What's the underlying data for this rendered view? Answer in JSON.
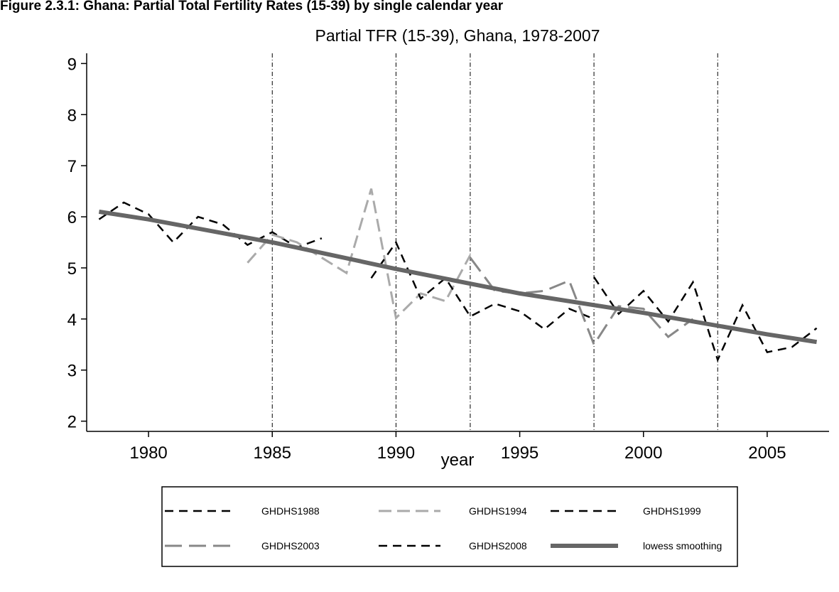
{
  "figure_caption": "Figure 2.3.1: Ghana: Partial Total Fertility Rates (15-39) by single calendar year",
  "chart_data": {
    "type": "line",
    "title": "Partial TFR (15-39), Ghana, 1978-2007",
    "x_label": "year",
    "xlim": [
      1977.5,
      2007.5
    ],
    "xticks": [
      1980,
      1985,
      1990,
      1995,
      2000,
      2005
    ],
    "ylim": [
      1.8,
      9.2
    ],
    "yticks": [
      2,
      3,
      4,
      5,
      6,
      7,
      8,
      9
    ],
    "xlines": [
      1985,
      1990,
      1993,
      1998,
      2003
    ],
    "series": [
      {
        "name": "GHDHS1988",
        "color": "#000000",
        "dash": "12,8",
        "width": 2.5,
        "x": [
          1978,
          1979,
          1980,
          1981,
          1982,
          1983,
          1984,
          1985,
          1986,
          1987
        ],
        "values": [
          5.95,
          6.28,
          6.05,
          5.5,
          6.0,
          5.85,
          5.45,
          5.7,
          5.4,
          5.58
        ]
      },
      {
        "name": "GHDHS1994",
        "color": "#aaaaaa",
        "dash": "18,8",
        "width": 3,
        "x": [
          1984,
          1985,
          1986,
          1987,
          1988,
          1989,
          1990,
          1991,
          1992,
          1993
        ],
        "values": [
          5.1,
          5.65,
          5.5,
          5.2,
          4.9,
          6.55,
          4.02,
          4.5,
          4.35,
          5.25
        ]
      },
      {
        "name": "GHDHS1999",
        "color": "#000000",
        "dash": "12,8",
        "width": 2.5,
        "x": [
          1989,
          1990,
          1991,
          1992,
          1993,
          1994,
          1995,
          1996,
          1997,
          1998
        ],
        "values": [
          4.8,
          5.5,
          4.4,
          4.8,
          4.05,
          4.3,
          4.15,
          3.8,
          4.2,
          4.0
        ]
      },
      {
        "name": "GHDHS2003",
        "color": "#888888",
        "dash": "24,10",
        "width": 3,
        "x": [
          1993,
          1994,
          1995,
          1996,
          1997,
          1998,
          1999,
          2000,
          2001,
          2002
        ],
        "values": [
          5.2,
          4.55,
          4.5,
          4.55,
          4.75,
          3.5,
          4.25,
          4.2,
          3.65,
          4.0
        ]
      },
      {
        "name": "GHDHS2008",
        "color": "#000000",
        "dash": "12,8",
        "width": 2.5,
        "x": [
          1998,
          1999,
          2000,
          2001,
          2002,
          2003,
          2004,
          2005,
          2006,
          2007
        ],
        "values": [
          4.82,
          4.1,
          4.55,
          3.95,
          4.72,
          3.2,
          4.27,
          3.35,
          3.45,
          3.82
        ]
      },
      {
        "name": "lowess smoothing",
        "color": "#666666",
        "dash": "none",
        "width": 6,
        "x": [
          1978,
          1980,
          1985,
          1990,
          1995,
          2000,
          2005,
          2007
        ],
        "values": [
          6.1,
          5.95,
          5.5,
          4.98,
          4.5,
          4.12,
          3.7,
          3.55
        ]
      }
    ]
  }
}
